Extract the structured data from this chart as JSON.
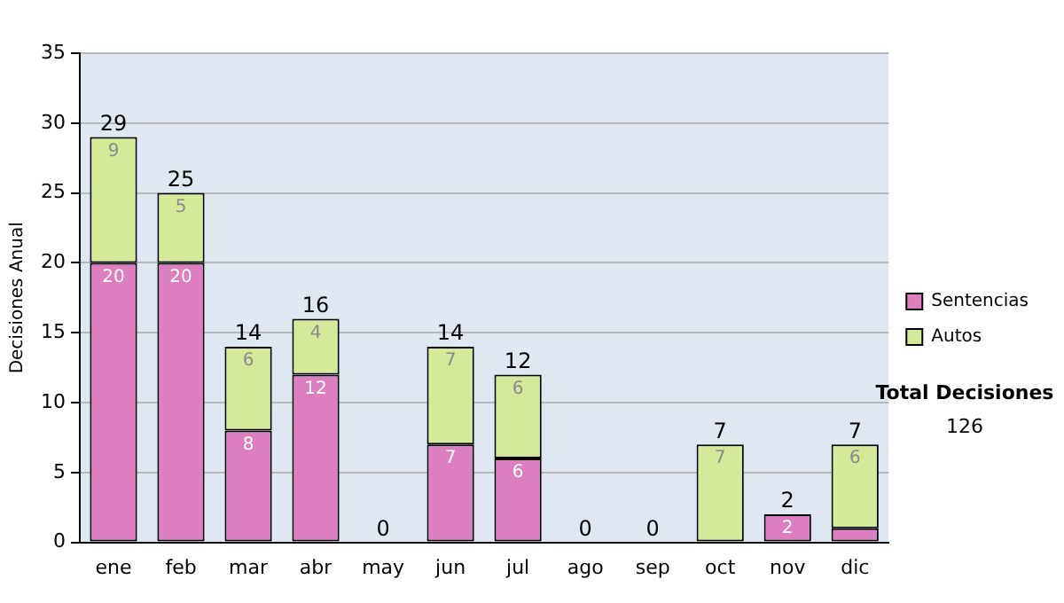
{
  "chart_data": {
    "type": "bar",
    "stacked": true,
    "ylabel": "Decisiones Anual",
    "categories": [
      "ene",
      "feb",
      "mar",
      "abr",
      "may",
      "jun",
      "jul",
      "ago",
      "sep",
      "oct",
      "nov",
      "dic"
    ],
    "series": [
      {
        "name": "Sentencias",
        "color": "#dd7fbf",
        "values": [
          20,
          20,
          8,
          12,
          0,
          7,
          6,
          0,
          0,
          0,
          2,
          1
        ],
        "value_labels": [
          "20",
          "20",
          "8",
          "12",
          null,
          "7",
          "6",
          null,
          null,
          null,
          "2",
          null
        ]
      },
      {
        "name": "Autos",
        "color": "#d4ea98",
        "values": [
          9,
          5,
          6,
          4,
          0,
          7,
          6,
          0,
          0,
          7,
          0,
          6
        ],
        "value_labels": [
          "9",
          "5",
          "6",
          "4",
          null,
          "7",
          "6",
          null,
          null,
          "7",
          null,
          "6"
        ]
      }
    ],
    "totals": [
      "29",
      "25",
      "14",
      "16",
      "0",
      "14",
      "12",
      "0",
      "0",
      "7",
      "2",
      "7"
    ],
    "ylim": [
      0,
      35
    ],
    "yticks": [
      0,
      5,
      10,
      15,
      20,
      25,
      30,
      35
    ],
    "grid": "y",
    "legend": "right",
    "annotations": [
      "Total Decisiones",
      "126"
    ]
  }
}
